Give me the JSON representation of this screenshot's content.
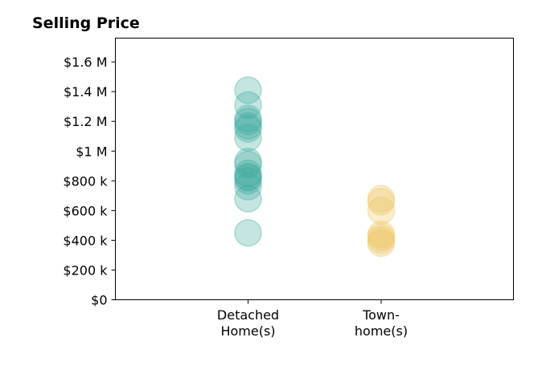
{
  "chart_data": {
    "type": "scatter",
    "title": "Selling Price",
    "xlabel": "",
    "ylabel": "",
    "categories": [
      [
        "Detached",
        "Home(s)"
      ],
      [
        "Town-",
        "home(s)"
      ]
    ],
    "ylim": [
      0,
      1760000
    ],
    "y_ticks": [
      {
        "value": 0,
        "label": "$0"
      },
      {
        "value": 200000,
        "label": "$200 k"
      },
      {
        "value": 400000,
        "label": "$400 k"
      },
      {
        "value": 600000,
        "label": "$600 k"
      },
      {
        "value": 800000,
        "label": "$800 k"
      },
      {
        "value": 1000000,
        "label": "$1 M"
      },
      {
        "value": 1200000,
        "label": "$1.2 M"
      },
      {
        "value": 1400000,
        "label": "$1.4 M"
      },
      {
        "value": 1600000,
        "label": "$1.6 M"
      }
    ],
    "grid": false,
    "series": [
      {
        "category_index": 0,
        "color": "#3aa89a",
        "values": [
          1410000,
          1310000,
          1220000,
          1200000,
          1170000,
          1150000,
          1090000,
          930000,
          910000,
          850000,
          830000,
          820000,
          800000,
          760000,
          680000,
          450000
        ]
      },
      {
        "category_index": 1,
        "color": "#ebc45d",
        "values": [
          680000,
          660000,
          600000,
          440000,
          420000,
          400000,
          380000
        ]
      }
    ]
  }
}
